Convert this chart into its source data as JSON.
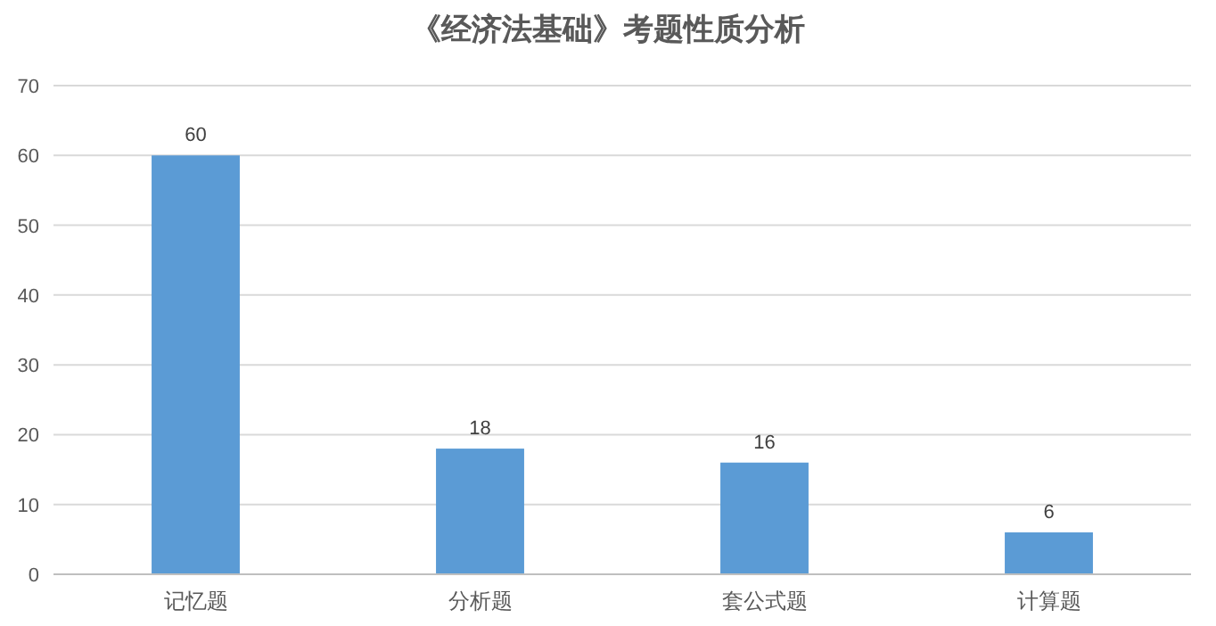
{
  "chart_data": {
    "type": "bar",
    "title": "《经济法基础》考题性质分析",
    "categories": [
      "记忆题",
      "分析题",
      "套公式题",
      "计算题"
    ],
    "values": [
      60,
      18,
      16,
      6
    ],
    "color": "#5b9bd5",
    "ylim": [
      0,
      70
    ],
    "yticks": [
      0,
      10,
      20,
      30,
      40,
      50,
      60,
      70
    ],
    "grid": "y",
    "data_labels": true
  }
}
